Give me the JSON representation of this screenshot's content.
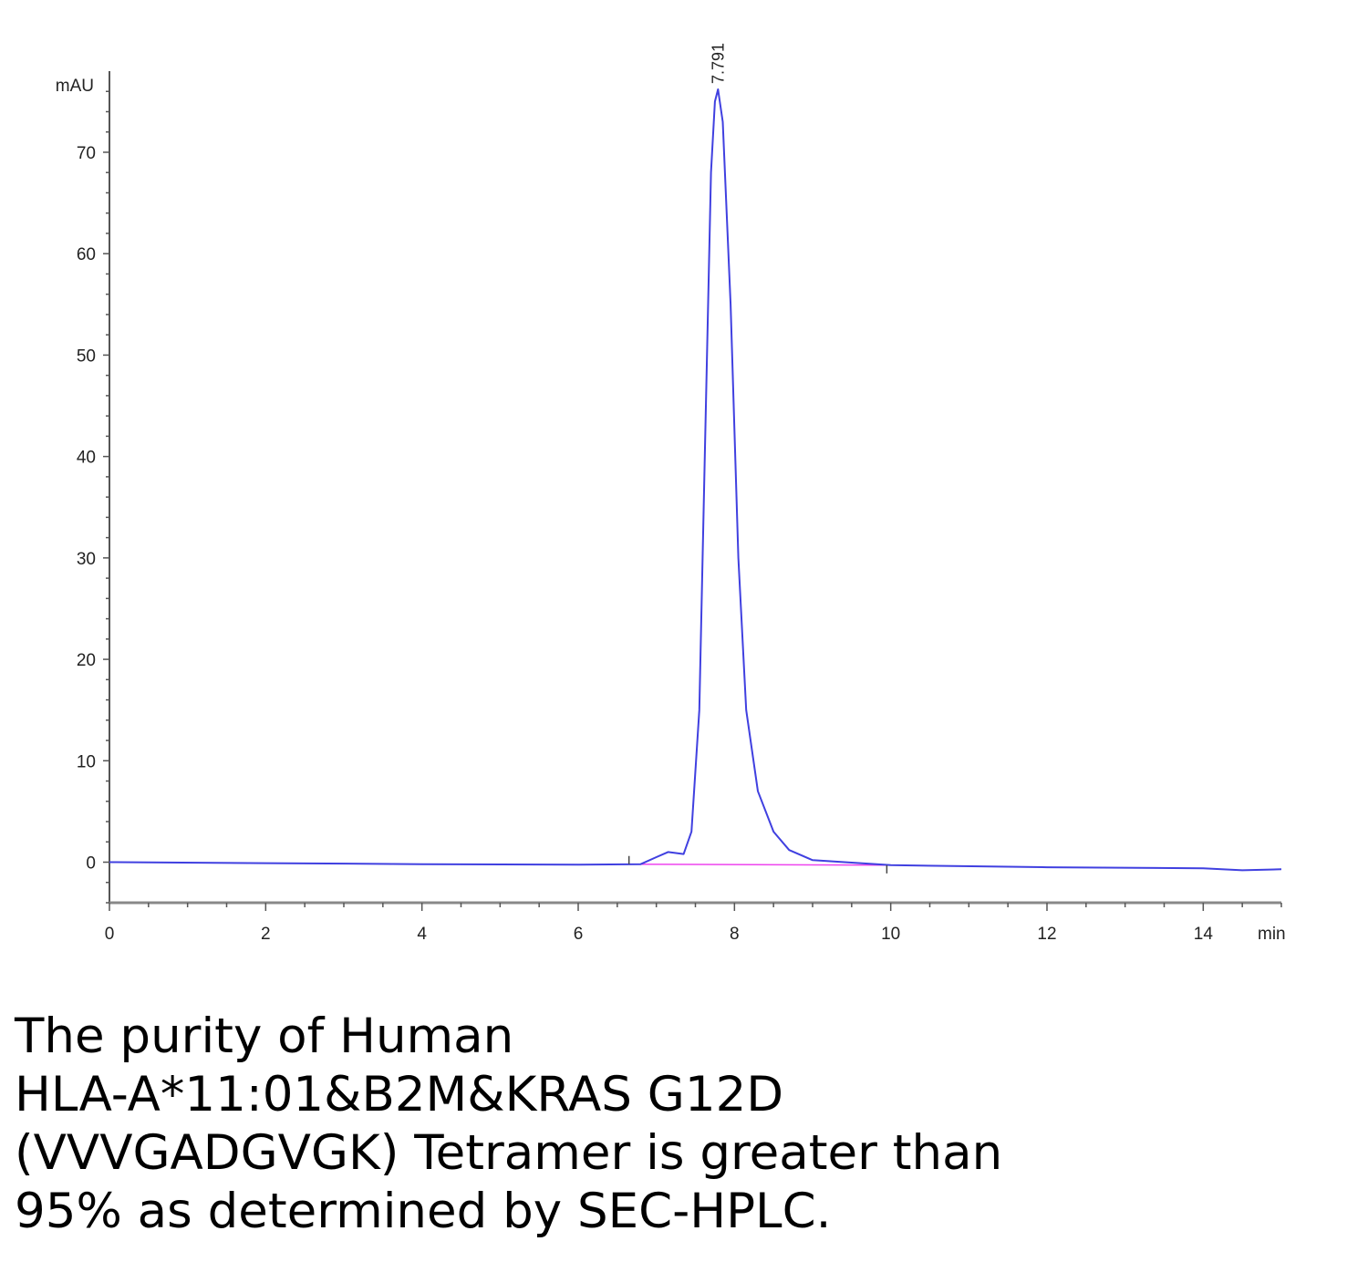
{
  "chart_data": {
    "type": "line",
    "xlabel": "min",
    "ylabel": "mAU",
    "xlim": [
      0,
      15
    ],
    "ylim": [
      -4,
      78
    ],
    "x_ticks": [
      0,
      2,
      4,
      6,
      8,
      10,
      12,
      14
    ],
    "y_ticks": [
      0,
      10,
      20,
      30,
      40,
      50,
      60,
      70
    ],
    "grid": false,
    "peak_label": "7.791",
    "series": [
      {
        "color": "#4040e0",
        "points": [
          [
            0,
            0
          ],
          [
            2,
            -0.1
          ],
          [
            4,
            -0.2
          ],
          [
            6,
            -0.25
          ],
          [
            6.8,
            -0.2
          ],
          [
            7.0,
            0.5
          ],
          [
            7.15,
            1.0
          ],
          [
            7.25,
            0.9
          ],
          [
            7.35,
            0.8
          ],
          [
            7.45,
            3
          ],
          [
            7.55,
            15
          ],
          [
            7.62,
            40
          ],
          [
            7.7,
            68
          ],
          [
            7.75,
            75
          ],
          [
            7.79,
            76.2
          ],
          [
            7.85,
            73
          ],
          [
            7.95,
            55
          ],
          [
            8.05,
            30
          ],
          [
            8.15,
            15
          ],
          [
            8.3,
            7
          ],
          [
            8.5,
            3
          ],
          [
            8.7,
            1.2
          ],
          [
            9.0,
            0.2
          ],
          [
            10,
            -0.3
          ],
          [
            12,
            -0.5
          ],
          [
            14,
            -0.6
          ],
          [
            14.5,
            -0.8
          ],
          [
            15,
            -0.7
          ]
        ]
      },
      {
        "color": "#ee44ee",
        "points": [
          [
            6.65,
            -0.2
          ],
          [
            9.95,
            -0.3
          ]
        ]
      }
    ]
  },
  "caption": {
    "line1": "The purity of Human",
    "line2": "HLA-A*11:01&B2M&KRAS G12D",
    "line3": "(VVVGADGVGK) Tetramer is greater than",
    "line4": "95% as determined by SEC-HPLC."
  }
}
